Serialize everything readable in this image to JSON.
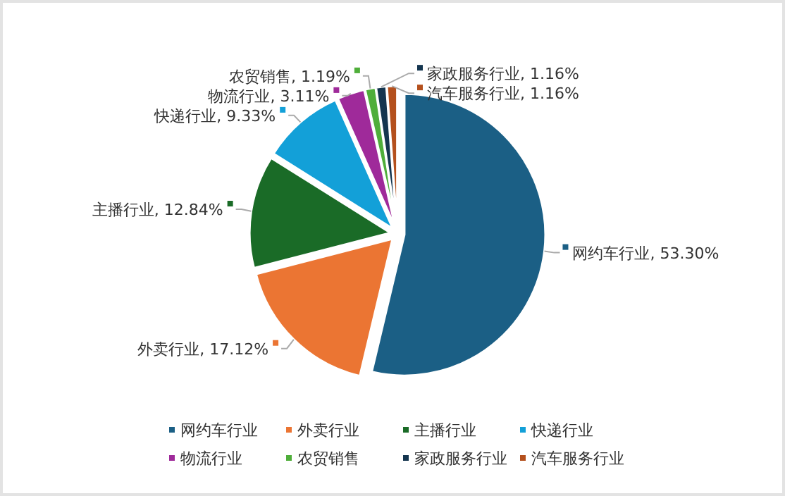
{
  "chart_data": {
    "type": "pie",
    "categories": [
      "网约车行业",
      "外卖行业",
      "主播行业",
      "快递行业",
      "物流行业",
      "农贸销售",
      "家政服务行业",
      "汽车服务行业"
    ],
    "values": [
      53.3,
      17.12,
      12.84,
      9.33,
      3.11,
      1.19,
      1.16,
      1.16
    ],
    "colors": [
      "#1b5f85",
      "#eb7533",
      "#1a6b27",
      "#13a0d8",
      "#9f2a9a",
      "#4fae3a",
      "#14354f",
      "#b4501d"
    ],
    "value_labels": [
      "网约车行业, 53.30%",
      "外卖行业, 17.12%",
      "主播行业, 12.84%",
      "快递行业, 9.33%",
      "物流行业, 3.11%",
      "农贸销售, 1.19%",
      "家政服务行业, 1.16%",
      "汽车服务行业, 1.16%"
    ],
    "legend": "bottom"
  }
}
